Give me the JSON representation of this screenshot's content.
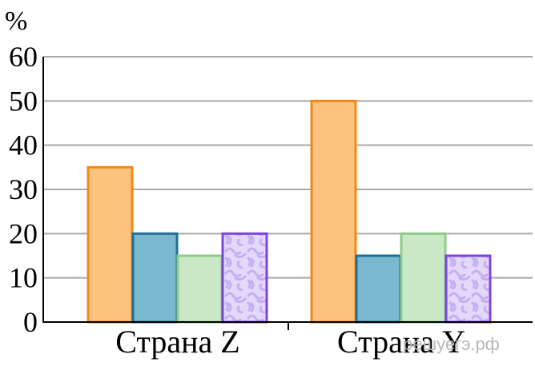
{
  "chart_data": {
    "type": "bar",
    "ylabel": "%",
    "ylim": [
      0,
      60
    ],
    "yticks": [
      0,
      10,
      20,
      30,
      40,
      50,
      60
    ],
    "grid": true,
    "categories": [
      "Страна Z",
      "Страна Y"
    ],
    "series": [
      {
        "values": [
          35,
          50
        ],
        "fill": "#fcc27e",
        "stroke": "#f08a14",
        "pattern": "none"
      },
      {
        "values": [
          20,
          15
        ],
        "fill": "#7ab8d0",
        "stroke": "#1f6e94",
        "pattern": "none"
      },
      {
        "values": [
          15,
          20
        ],
        "fill": "#cae8c6",
        "stroke": "#8dcc88",
        "pattern": "none"
      },
      {
        "values": [
          20,
          15
        ],
        "fill": "#e3d8fa",
        "stroke": "#7a45e0",
        "pattern": "squiggle"
      }
    ]
  },
  "watermark": "решуегэ.рф",
  "colors": {
    "axis": "#000000",
    "grid": "#a8a8a8",
    "pattern_squiggle": "#c4b0f0"
  }
}
